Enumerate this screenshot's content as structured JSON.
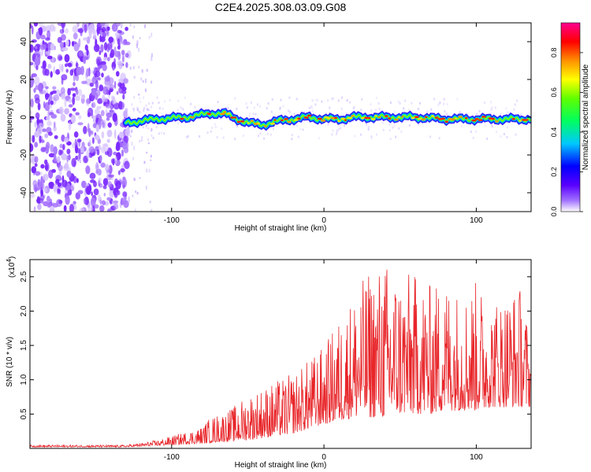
{
  "chart_data": [
    {
      "type": "heatmap",
      "title": "C2E4.2025.308.03.09.G08",
      "xlabel": "Height of straight line (km)",
      "ylabel": "Frequency (Hz)",
      "xlim": [
        -193,
        136
      ],
      "ylim": [
        -50,
        50
      ],
      "xticks": [
        -100,
        0,
        100
      ],
      "yticks": [
        -40,
        -20,
        0,
        20,
        40
      ],
      "xtick_labels": [
        "-100",
        "0",
        "100"
      ],
      "ytick_labels": [
        "-40",
        "-20",
        "0",
        "20",
        "40"
      ],
      "colorbar": {
        "label": "Normalized spectral amplitude",
        "range": [
          0.0,
          0.95
        ],
        "ticks": [
          0.0,
          0.2,
          0.4,
          0.6,
          0.8
        ],
        "tick_labels": [
          "0.0",
          "0.2",
          "0.4",
          "0.6",
          "0.8"
        ],
        "colormap": [
          "#ffffff",
          "#8800ff",
          "#0000ff",
          "#00ffff",
          "#00ff00",
          "#ffff00",
          "#ff8800",
          "#ff0000",
          "#ff00aa"
        ]
      },
      "noise_region_x": [
        -193,
        -128
      ],
      "doppler_trace": {
        "x": [
          -130,
          -110,
          -90,
          -75,
          -65,
          -60,
          -50,
          -40,
          -30,
          -20,
          -10,
          0,
          10,
          20,
          40,
          60,
          80,
          100,
          120,
          136
        ],
        "y": [
          -3,
          -1,
          0,
          2,
          2,
          0,
          -3,
          -4,
          -2,
          -1,
          0,
          -1,
          -1,
          0,
          0,
          0,
          -1,
          -1,
          -1,
          -1
        ]
      }
    },
    {
      "type": "line",
      "title": "",
      "xlabel": "Height of straight line (km)",
      "ylabel": "SNR (10 * v/v)",
      "scale_label": "(x10",
      "scale_exp": "4",
      "xlim": [
        -193,
        136
      ],
      "ylim": [
        0,
        2.75
      ],
      "xticks": [
        -100,
        0,
        100
      ],
      "xtick_labels": [
        "-100",
        "0",
        "100"
      ],
      "yticks": [
        0.5,
        1.0,
        1.5,
        2.0,
        2.5
      ],
      "ytick_labels": [
        "0.5",
        "1.0",
        "1.5",
        "2.0",
        "2.5"
      ],
      "series": [
        {
          "name": "SNR",
          "color": "#e8262a",
          "envelope_x": [
            -193,
            -130,
            -120,
            -110,
            -100,
            -90,
            -80,
            -75,
            -70,
            -60,
            -50,
            -40,
            -30,
            -20,
            -10,
            0,
            10,
            20,
            30,
            40,
            50,
            60,
            70,
            80,
            90,
            100,
            110,
            120,
            130,
            136
          ],
          "envelope_min": [
            0.02,
            0.02,
            0.03,
            0.04,
            0.05,
            0.06,
            0.07,
            0.08,
            0.09,
            0.1,
            0.12,
            0.15,
            0.18,
            0.22,
            0.28,
            0.35,
            0.4,
            0.45,
            0.45,
            0.45,
            0.5,
            0.5,
            0.5,
            0.55,
            0.55,
            0.55,
            0.6,
            0.6,
            0.6,
            0.6
          ],
          "envelope_max": [
            0.05,
            0.05,
            0.08,
            0.12,
            0.18,
            0.25,
            0.32,
            0.45,
            0.5,
            0.6,
            0.8,
            0.9,
            1.0,
            1.1,
            1.3,
            1.5,
            1.9,
            2.3,
            2.6,
            2.75,
            2.6,
            2.55,
            2.4,
            2.5,
            2.3,
            2.45,
            2.2,
            2.3,
            2.4,
            1.5
          ]
        }
      ]
    }
  ]
}
